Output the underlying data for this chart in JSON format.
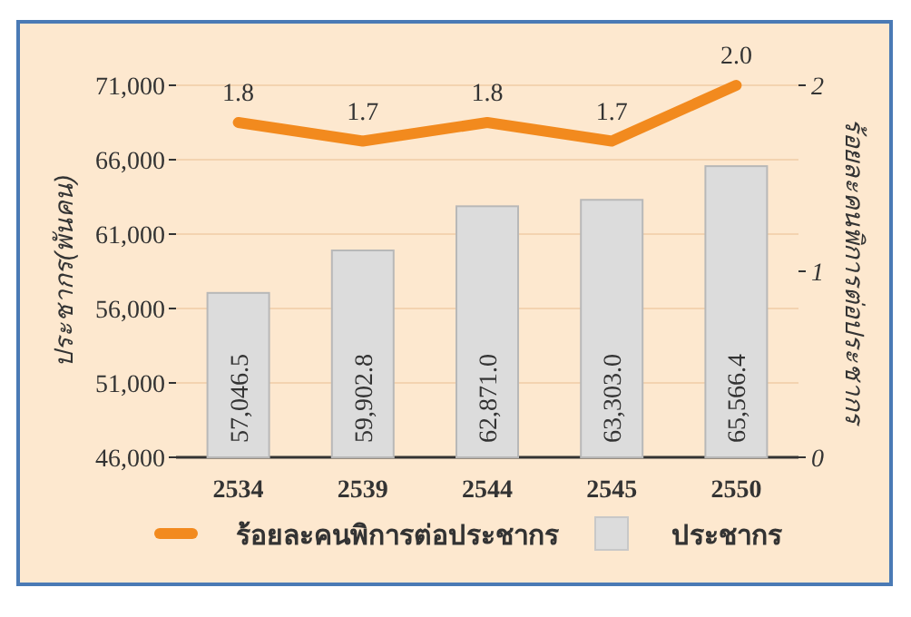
{
  "chart_data": {
    "type": "bar",
    "categories": [
      "2534",
      "2539",
      "2544",
      "2545",
      "2550"
    ],
    "ylabel": "ประชากร(พันคน)",
    "y2label": "ร้อยละคนพิการต่อประชากร",
    "ylim": [
      46000,
      71000
    ],
    "yticks": [
      {
        "value": 46000,
        "label": "46,000"
      },
      {
        "value": 51000,
        "label": "51,000"
      },
      {
        "value": 56000,
        "label": "56,000"
      },
      {
        "value": 61000,
        "label": "61,000"
      },
      {
        "value": 66000,
        "label": "66,000"
      },
      {
        "value": 71000,
        "label": "71,000"
      }
    ],
    "y2lim": [
      0,
      2
    ],
    "y2ticks": [
      0,
      1,
      2
    ],
    "grid": "y",
    "legend": "bottom",
    "series": [
      {
        "name": "ร้อยละคนพิการต่อประชากร",
        "type": "line",
        "axis": "y2",
        "color": "#f28a1e",
        "values": [
          1.8,
          1.7,
          1.8,
          1.7,
          2.0
        ],
        "value_labels": [
          "1.8",
          "1.7",
          "1.8",
          "1.7",
          "2.0"
        ]
      },
      {
        "name": "ประชากร",
        "color": "#dcdcdc",
        "values": [
          57046.5,
          59902.8,
          62871.0,
          63303.0,
          65566.4
        ],
        "value_labels": [
          "57,046.5",
          "59,902.8",
          "62,871.0",
          "63,303.0",
          "65,566.4"
        ]
      }
    ]
  }
}
